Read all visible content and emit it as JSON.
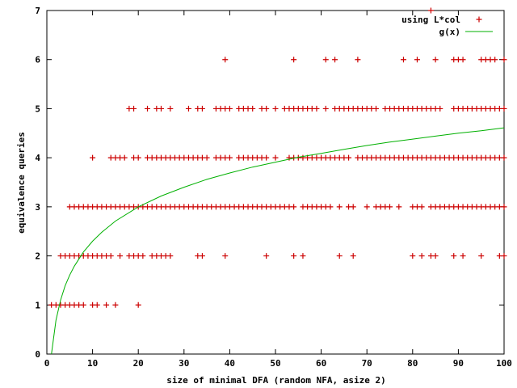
{
  "chart_data": {
    "type": "scatter",
    "xlabel": "size of minimal DFA (random NFA, asize 2)",
    "ylabel": "equivalence queries",
    "xlim": [
      0,
      100
    ],
    "ylim": [
      0,
      7
    ],
    "xticks": [
      "0",
      "10",
      "20",
      "30",
      "40",
      "50",
      "60",
      "70",
      "80",
      "90",
      "100"
    ],
    "yticks": [
      "0",
      "1",
      "2",
      "3",
      "4",
      "5",
      "6",
      "7"
    ],
    "legend_position": "top-right",
    "grid": false,
    "series": [
      {
        "name": "using L*col",
        "kind": "points",
        "marker": "+",
        "color": "#cc0000",
        "points": [
          [
            1,
            1
          ],
          [
            2,
            1
          ],
          [
            3,
            1
          ],
          [
            4,
            1
          ],
          [
            5,
            1
          ],
          [
            6,
            1
          ],
          [
            7,
            1
          ],
          [
            8,
            1
          ],
          [
            10,
            1
          ],
          [
            11,
            1
          ],
          [
            13,
            1
          ],
          [
            15,
            1
          ],
          [
            20,
            1
          ],
          [
            3,
            2
          ],
          [
            4,
            2
          ],
          [
            5,
            2
          ],
          [
            6,
            2
          ],
          [
            7,
            2
          ],
          [
            8,
            2
          ],
          [
            9,
            2
          ],
          [
            10,
            2
          ],
          [
            11,
            2
          ],
          [
            12,
            2
          ],
          [
            13,
            2
          ],
          [
            14,
            2
          ],
          [
            16,
            2
          ],
          [
            18,
            2
          ],
          [
            19,
            2
          ],
          [
            20,
            2
          ],
          [
            21,
            2
          ],
          [
            23,
            2
          ],
          [
            24,
            2
          ],
          [
            25,
            2
          ],
          [
            26,
            2
          ],
          [
            27,
            2
          ],
          [
            33,
            2
          ],
          [
            34,
            2
          ],
          [
            39,
            2
          ],
          [
            48,
            2
          ],
          [
            54,
            2
          ],
          [
            56,
            2
          ],
          [
            64,
            2
          ],
          [
            67,
            2
          ],
          [
            80,
            2
          ],
          [
            82,
            2
          ],
          [
            84,
            2
          ],
          [
            85,
            2
          ],
          [
            89,
            2
          ],
          [
            91,
            2
          ],
          [
            95,
            2
          ],
          [
            99,
            2
          ],
          [
            100,
            2
          ],
          [
            5,
            3
          ],
          [
            6,
            3
          ],
          [
            7,
            3
          ],
          [
            8,
            3
          ],
          [
            9,
            3
          ],
          [
            10,
            3
          ],
          [
            11,
            3
          ],
          [
            12,
            3
          ],
          [
            13,
            3
          ],
          [
            14,
            3
          ],
          [
            15,
            3
          ],
          [
            16,
            3
          ],
          [
            17,
            3
          ],
          [
            18,
            3
          ],
          [
            19,
            3
          ],
          [
            20,
            3
          ],
          [
            21,
            3
          ],
          [
            22,
            3
          ],
          [
            23,
            3
          ],
          [
            24,
            3
          ],
          [
            25,
            3
          ],
          [
            26,
            3
          ],
          [
            27,
            3
          ],
          [
            28,
            3
          ],
          [
            29,
            3
          ],
          [
            30,
            3
          ],
          [
            31,
            3
          ],
          [
            32,
            3
          ],
          [
            33,
            3
          ],
          [
            34,
            3
          ],
          [
            35,
            3
          ],
          [
            36,
            3
          ],
          [
            37,
            3
          ],
          [
            38,
            3
          ],
          [
            39,
            3
          ],
          [
            40,
            3
          ],
          [
            41,
            3
          ],
          [
            42,
            3
          ],
          [
            43,
            3
          ],
          [
            44,
            3
          ],
          [
            45,
            3
          ],
          [
            46,
            3
          ],
          [
            47,
            3
          ],
          [
            48,
            3
          ],
          [
            49,
            3
          ],
          [
            50,
            3
          ],
          [
            51,
            3
          ],
          [
            52,
            3
          ],
          [
            53,
            3
          ],
          [
            54,
            3
          ],
          [
            56,
            3
          ],
          [
            57,
            3
          ],
          [
            58,
            3
          ],
          [
            59,
            3
          ],
          [
            60,
            3
          ],
          [
            61,
            3
          ],
          [
            62,
            3
          ],
          [
            64,
            3
          ],
          [
            66,
            3
          ],
          [
            67,
            3
          ],
          [
            70,
            3
          ],
          [
            72,
            3
          ],
          [
            73,
            3
          ],
          [
            74,
            3
          ],
          [
            75,
            3
          ],
          [
            77,
            3
          ],
          [
            80,
            3
          ],
          [
            81,
            3
          ],
          [
            82,
            3
          ],
          [
            84,
            3
          ],
          [
            85,
            3
          ],
          [
            86,
            3
          ],
          [
            87,
            3
          ],
          [
            88,
            3
          ],
          [
            89,
            3
          ],
          [
            90,
            3
          ],
          [
            91,
            3
          ],
          [
            92,
            3
          ],
          [
            93,
            3
          ],
          [
            94,
            3
          ],
          [
            95,
            3
          ],
          [
            96,
            3
          ],
          [
            97,
            3
          ],
          [
            98,
            3
          ],
          [
            99,
            3
          ],
          [
            100,
            3
          ],
          [
            10,
            4
          ],
          [
            14,
            4
          ],
          [
            15,
            4
          ],
          [
            16,
            4
          ],
          [
            17,
            4
          ],
          [
            19,
            4
          ],
          [
            20,
            4
          ],
          [
            22,
            4
          ],
          [
            23,
            4
          ],
          [
            24,
            4
          ],
          [
            25,
            4
          ],
          [
            26,
            4
          ],
          [
            27,
            4
          ],
          [
            28,
            4
          ],
          [
            29,
            4
          ],
          [
            30,
            4
          ],
          [
            31,
            4
          ],
          [
            32,
            4
          ],
          [
            33,
            4
          ],
          [
            34,
            4
          ],
          [
            35,
            4
          ],
          [
            37,
            4
          ],
          [
            38,
            4
          ],
          [
            39,
            4
          ],
          [
            40,
            4
          ],
          [
            42,
            4
          ],
          [
            43,
            4
          ],
          [
            44,
            4
          ],
          [
            45,
            4
          ],
          [
            46,
            4
          ],
          [
            47,
            4
          ],
          [
            48,
            4
          ],
          [
            50,
            4
          ],
          [
            53,
            4
          ],
          [
            54,
            4
          ],
          [
            55,
            4
          ],
          [
            56,
            4
          ],
          [
            57,
            4
          ],
          [
            58,
            4
          ],
          [
            59,
            4
          ],
          [
            60,
            4
          ],
          [
            61,
            4
          ],
          [
            62,
            4
          ],
          [
            63,
            4
          ],
          [
            64,
            4
          ],
          [
            65,
            4
          ],
          [
            66,
            4
          ],
          [
            68,
            4
          ],
          [
            69,
            4
          ],
          [
            70,
            4
          ],
          [
            71,
            4
          ],
          [
            72,
            4
          ],
          [
            73,
            4
          ],
          [
            74,
            4
          ],
          [
            75,
            4
          ],
          [
            76,
            4
          ],
          [
            77,
            4
          ],
          [
            78,
            4
          ],
          [
            79,
            4
          ],
          [
            80,
            4
          ],
          [
            81,
            4
          ],
          [
            82,
            4
          ],
          [
            83,
            4
          ],
          [
            84,
            4
          ],
          [
            85,
            4
          ],
          [
            86,
            4
          ],
          [
            87,
            4
          ],
          [
            88,
            4
          ],
          [
            89,
            4
          ],
          [
            90,
            4
          ],
          [
            91,
            4
          ],
          [
            92,
            4
          ],
          [
            93,
            4
          ],
          [
            94,
            4
          ],
          [
            95,
            4
          ],
          [
            96,
            4
          ],
          [
            97,
            4
          ],
          [
            98,
            4
          ],
          [
            99,
            4
          ],
          [
            100,
            4
          ],
          [
            18,
            5
          ],
          [
            19,
            5
          ],
          [
            22,
            5
          ],
          [
            24,
            5
          ],
          [
            25,
            5
          ],
          [
            27,
            5
          ],
          [
            31,
            5
          ],
          [
            33,
            5
          ],
          [
            34,
            5
          ],
          [
            37,
            5
          ],
          [
            38,
            5
          ],
          [
            39,
            5
          ],
          [
            40,
            5
          ],
          [
            42,
            5
          ],
          [
            43,
            5
          ],
          [
            44,
            5
          ],
          [
            45,
            5
          ],
          [
            47,
            5
          ],
          [
            48,
            5
          ],
          [
            50,
            5
          ],
          [
            52,
            5
          ],
          [
            53,
            5
          ],
          [
            54,
            5
          ],
          [
            55,
            5
          ],
          [
            56,
            5
          ],
          [
            57,
            5
          ],
          [
            58,
            5
          ],
          [
            59,
            5
          ],
          [
            61,
            5
          ],
          [
            63,
            5
          ],
          [
            64,
            5
          ],
          [
            65,
            5
          ],
          [
            66,
            5
          ],
          [
            67,
            5
          ],
          [
            68,
            5
          ],
          [
            69,
            5
          ],
          [
            70,
            5
          ],
          [
            71,
            5
          ],
          [
            72,
            5
          ],
          [
            74,
            5
          ],
          [
            75,
            5
          ],
          [
            76,
            5
          ],
          [
            77,
            5
          ],
          [
            78,
            5
          ],
          [
            79,
            5
          ],
          [
            80,
            5
          ],
          [
            81,
            5
          ],
          [
            82,
            5
          ],
          [
            83,
            5
          ],
          [
            84,
            5
          ],
          [
            85,
            5
          ],
          [
            86,
            5
          ],
          [
            89,
            5
          ],
          [
            90,
            5
          ],
          [
            91,
            5
          ],
          [
            92,
            5
          ],
          [
            93,
            5
          ],
          [
            94,
            5
          ],
          [
            95,
            5
          ],
          [
            96,
            5
          ],
          [
            97,
            5
          ],
          [
            98,
            5
          ],
          [
            99,
            5
          ],
          [
            100,
            5
          ],
          [
            39,
            6
          ],
          [
            54,
            6
          ],
          [
            61,
            6
          ],
          [
            63,
            6
          ],
          [
            68,
            6
          ],
          [
            78,
            6
          ],
          [
            81,
            6
          ],
          [
            85,
            6
          ],
          [
            89,
            6
          ],
          [
            90,
            6
          ],
          [
            91,
            6
          ],
          [
            95,
            6
          ],
          [
            96,
            6
          ],
          [
            97,
            6
          ],
          [
            98,
            6
          ],
          [
            100,
            6
          ],
          [
            84,
            7
          ]
        ]
      },
      {
        "name": "g(x)",
        "kind": "line",
        "color": "#00b000",
        "points": [
          [
            1,
            0
          ],
          [
            2,
            0.69
          ],
          [
            3,
            1.1
          ],
          [
            4,
            1.39
          ],
          [
            5,
            1.61
          ],
          [
            6,
            1.79
          ],
          [
            8,
            2.08
          ],
          [
            10,
            2.3
          ],
          [
            12,
            2.48
          ],
          [
            15,
            2.71
          ],
          [
            20,
            3.0
          ],
          [
            25,
            3.22
          ],
          [
            30,
            3.4
          ],
          [
            35,
            3.56
          ],
          [
            40,
            3.69
          ],
          [
            45,
            3.81
          ],
          [
            50,
            3.91
          ],
          [
            55,
            4.01
          ],
          [
            60,
            4.09
          ],
          [
            65,
            4.17
          ],
          [
            70,
            4.25
          ],
          [
            75,
            4.32
          ],
          [
            80,
            4.38
          ],
          [
            85,
            4.44
          ],
          [
            90,
            4.5
          ],
          [
            95,
            4.55
          ],
          [
            100,
            4.61
          ]
        ]
      }
    ]
  }
}
